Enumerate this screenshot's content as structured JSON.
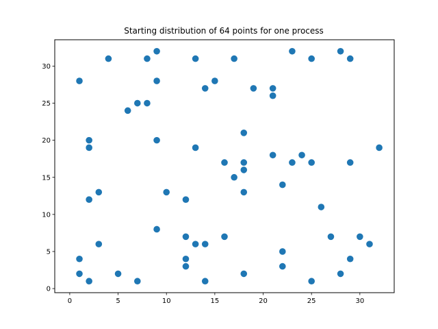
{
  "chart_data": {
    "type": "scatter",
    "title": "Starting distribution of 64 points for one process",
    "xlabel": "",
    "ylabel": "",
    "xlim": [
      -1.55,
      33.55
    ],
    "ylim": [
      -0.55,
      33.55
    ],
    "xticks": [
      0,
      5,
      10,
      15,
      20,
      25,
      30
    ],
    "yticks": [
      0,
      5,
      10,
      15,
      20,
      25,
      30
    ],
    "grid": false,
    "marker_color": "#1f77b4",
    "series": [
      {
        "points": [
          [
            1,
            28
          ],
          [
            1,
            4
          ],
          [
            1,
            2
          ],
          [
            2,
            20
          ],
          [
            2,
            19
          ],
          [
            2,
            12
          ],
          [
            2,
            1
          ],
          [
            3,
            13
          ],
          [
            3,
            6
          ],
          [
            4,
            31
          ],
          [
            5,
            2
          ],
          [
            6,
            24
          ],
          [
            7,
            25
          ],
          [
            7,
            1
          ],
          [
            8,
            31
          ],
          [
            8,
            25
          ],
          [
            9,
            32
          ],
          [
            9,
            28
          ],
          [
            9,
            20
          ],
          [
            9,
            8
          ],
          [
            10,
            13
          ],
          [
            12,
            12
          ],
          [
            12,
            7
          ],
          [
            12,
            4
          ],
          [
            12,
            3
          ],
          [
            13,
            31
          ],
          [
            13,
            19
          ],
          [
            13,
            6
          ],
          [
            14,
            27
          ],
          [
            14,
            6
          ],
          [
            14,
            1
          ],
          [
            15,
            28
          ],
          [
            16,
            17
          ],
          [
            16,
            7
          ],
          [
            17,
            31
          ],
          [
            17,
            15
          ],
          [
            18,
            21
          ],
          [
            18,
            17
          ],
          [
            18,
            16
          ],
          [
            18,
            13
          ],
          [
            18,
            2
          ],
          [
            19,
            27
          ],
          [
            21,
            27
          ],
          [
            21,
            26
          ],
          [
            21,
            18
          ],
          [
            22,
            14
          ],
          [
            22,
            5
          ],
          [
            22,
            3
          ],
          [
            23,
            32
          ],
          [
            23,
            17
          ],
          [
            24,
            18
          ],
          [
            25,
            31
          ],
          [
            25,
            17
          ],
          [
            25,
            1
          ],
          [
            26,
            11
          ],
          [
            27,
            7
          ],
          [
            28,
            32
          ],
          [
            28,
            2
          ],
          [
            29,
            31
          ],
          [
            29,
            17
          ],
          [
            29,
            4
          ],
          [
            30,
            7
          ],
          [
            31,
            6
          ],
          [
            32,
            19
          ]
        ]
      }
    ]
  }
}
